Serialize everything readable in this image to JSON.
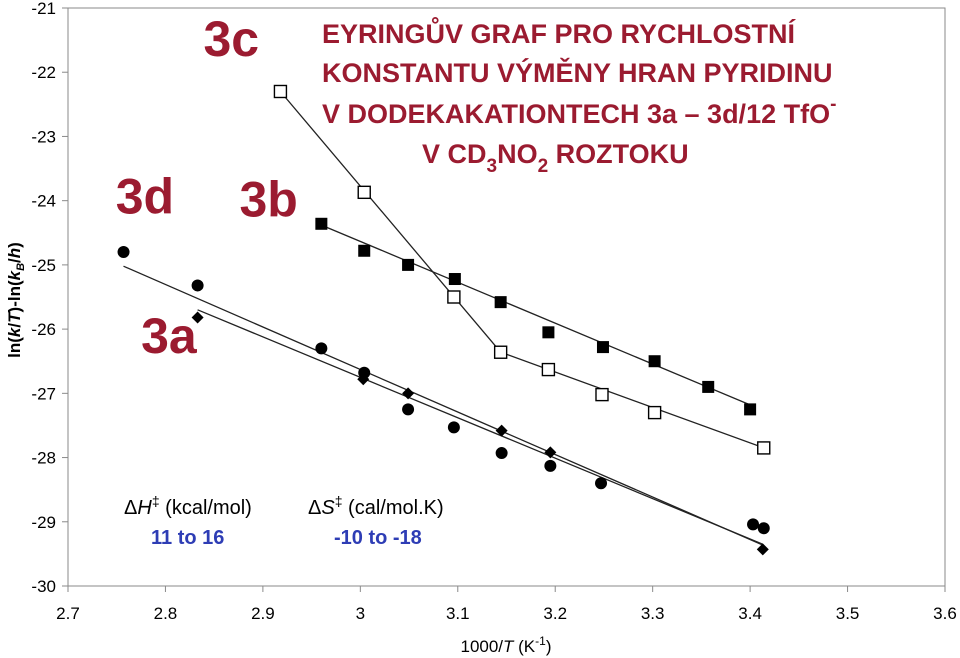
{
  "chart_data": {
    "type": "scatter",
    "title_lines": [
      {
        "text": "EYRINGŮV GRAF PRO RYCHLOSTNÍ"
      },
      {
        "text": "KONSTANTU VÝMĚNY HRAN PYRIDINU"
      },
      {
        "text": "V DODEKAKATIONTECH 3a – 3d/12 TfO",
        "sup": "-"
      },
      {
        "text": "V CD",
        "sub1": "3",
        "mid": "NO",
        "sub2": "2",
        "end": " ROZTOKU"
      }
    ],
    "xlabel": {
      "pre": "1000/",
      "italic": "T",
      "mid": " (K",
      "sup": "-1",
      "post": ")"
    },
    "ylabel": {
      "a": "ln(",
      "b": "k",
      "c": "/",
      "d": "T",
      "e": ")-ln(",
      "f": "k",
      "g": "B",
      "h": "/",
      "i": "h",
      "j": ")"
    },
    "xlim": [
      2.7,
      3.6
    ],
    "ylim": [
      -30,
      -21
    ],
    "xticks": [
      "2.7",
      "2.8",
      "2.9",
      "3",
      "3.1",
      "3.2",
      "3.3",
      "3.4",
      "3.5",
      "3.6"
    ],
    "yticks": [
      "-21",
      "-22",
      "-23",
      "-24",
      "-25",
      "-26",
      "-27",
      "-28",
      "-29",
      "-30"
    ],
    "grid": false,
    "series": [
      {
        "name": "3a",
        "marker": "diamond",
        "color": "#000000",
        "points": [
          [
            2.833,
            -25.82
          ],
          [
            3.003,
            -26.78
          ],
          [
            3.049,
            -27.0
          ],
          [
            3.145,
            -27.58
          ],
          [
            3.195,
            -27.92
          ],
          [
            3.413,
            -29.43
          ]
        ],
        "fit": [
          [
            2.833,
            -25.7
          ],
          [
            3.413,
            -29.35
          ]
        ]
      },
      {
        "name": "3b",
        "marker": "filled-square",
        "color": "#000000",
        "points": [
          [
            2.96,
            -24.36
          ],
          [
            3.004,
            -24.78
          ],
          [
            3.049,
            -25.0
          ],
          [
            3.097,
            -25.22
          ],
          [
            3.144,
            -25.58
          ],
          [
            3.193,
            -26.05
          ],
          [
            3.249,
            -26.28
          ],
          [
            3.302,
            -26.5
          ],
          [
            3.357,
            -26.9
          ],
          [
            3.4,
            -27.25
          ]
        ],
        "fit": [
          [
            2.96,
            -24.38
          ],
          [
            3.4,
            -27.18
          ]
        ]
      },
      {
        "name": "3c",
        "marker": "open-square",
        "color": "#000000",
        "points": [
          [
            2.918,
            -22.3
          ],
          [
            3.004,
            -23.87
          ],
          [
            3.096,
            -25.5
          ],
          [
            3.144,
            -26.36
          ],
          [
            3.193,
            -26.63
          ],
          [
            3.248,
            -27.02
          ],
          [
            3.302,
            -27.3
          ],
          [
            3.414,
            -27.85
          ]
        ],
        "fit": [
          [
            2.918,
            -22.3
          ],
          [
            3.144,
            -26.36
          ],
          [
            3.414,
            -27.85
          ]
        ]
      },
      {
        "name": "3d",
        "marker": "circle",
        "color": "#000000",
        "points": [
          [
            2.757,
            -24.8
          ],
          [
            2.833,
            -25.32
          ],
          [
            2.96,
            -26.3
          ],
          [
            3.004,
            -26.68
          ],
          [
            3.049,
            -27.25
          ],
          [
            3.096,
            -27.53
          ],
          [
            3.145,
            -27.93
          ],
          [
            3.195,
            -28.13
          ],
          [
            3.247,
            -28.4
          ],
          [
            3.403,
            -29.04
          ],
          [
            3.414,
            -29.1
          ]
        ],
        "fit": [
          [
            2.757,
            -25.02
          ],
          [
            3.414,
            -29.37
          ]
        ]
      }
    ],
    "series_labels": [
      {
        "text": "3a",
        "x": 2.775,
        "y": -26.37
      },
      {
        "text": "3b",
        "x": 2.876,
        "y": -24.25
      },
      {
        "text": "3c",
        "x": 2.839,
        "y": -21.75
      },
      {
        "text": "3d",
        "x": 2.749,
        "y": -24.2
      }
    ],
    "annotations": {
      "dH_head": {
        "delta": "Δ",
        "sym": "H",
        "sup": "‡",
        "unit": " (kcal/mol)"
      },
      "dH_value": "11 to 16",
      "dS_head": {
        "delta": "Δ",
        "sym": "S",
        "sup": "‡",
        "unit": " (cal/mol.K)"
      },
      "dS_value": "-10 to -18"
    },
    "colors": {
      "label": "#9b1b30",
      "note_value": "#2e3db5",
      "axis": "#000000"
    }
  }
}
